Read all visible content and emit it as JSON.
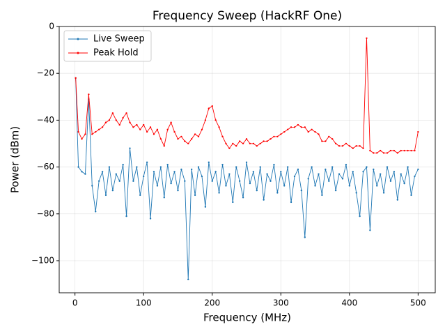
{
  "chart_data": {
    "type": "line",
    "title": "Frequency Sweep (HackRF One)",
    "x_label": "Frequency (MHz)",
    "y_label": "Power (dBm)",
    "x": [
      1,
      5,
      10,
      15,
      20,
      25,
      30,
      35,
      40,
      45,
      50,
      55,
      60,
      65,
      70,
      75,
      80,
      85,
      90,
      95,
      100,
      105,
      110,
      115,
      120,
      125,
      130,
      135,
      140,
      145,
      150,
      155,
      160,
      165,
      170,
      175,
      180,
      185,
      190,
      195,
      200,
      205,
      210,
      215,
      220,
      225,
      230,
      235,
      240,
      245,
      250,
      255,
      260,
      265,
      270,
      275,
      280,
      285,
      290,
      295,
      300,
      305,
      310,
      315,
      320,
      325,
      330,
      335,
      340,
      345,
      350,
      355,
      360,
      365,
      370,
      375,
      380,
      385,
      390,
      395,
      400,
      405,
      410,
      415,
      420,
      425,
      430,
      435,
      440,
      445,
      450,
      455,
      460,
      465,
      470,
      475,
      480,
      485,
      490,
      495,
      500
    ],
    "series": [
      {
        "name": "Live Sweep",
        "color": "#1f77b4",
        "values": [
          -22,
          -60,
          -62,
          -63,
          -31,
          -68,
          -79,
          -66,
          -62,
          -72,
          -60,
          -70,
          -63,
          -66,
          -59,
          -81,
          -52,
          -66,
          -60,
          -72,
          -64,
          -58,
          -82,
          -62,
          -68,
          -60,
          -73,
          -59,
          -67,
          -62,
          -70,
          -61,
          -66,
          -108,
          -61,
          -72,
          -60,
          -64,
          -77,
          -58,
          -66,
          -62,
          -71,
          -59,
          -68,
          -63,
          -75,
          -60,
          -66,
          -73,
          -58,
          -67,
          -62,
          -70,
          -60,
          -74,
          -63,
          -66,
          -59,
          -71,
          -62,
          -68,
          -60,
          -75,
          -64,
          -61,
          -70,
          -90,
          -65,
          -60,
          -68,
          -63,
          -72,
          -61,
          -66,
          -60,
          -70,
          -63,
          -65,
          -59,
          -68,
          -62,
          -71,
          -81,
          -62,
          -60,
          -87,
          -61,
          -68,
          -63,
          -71,
          -60,
          -66,
          -62,
          -74,
          -63,
          -67,
          -60,
          -72,
          -64,
          -61
        ]
      },
      {
        "name": "Peak Hold",
        "color": "#ff0000",
        "values": [
          -22,
          -45,
          -48,
          -46,
          -29,
          -46,
          -45,
          -44,
          -43,
          -41,
          -40,
          -37,
          -40,
          -42,
          -39,
          -37,
          -41,
          -43,
          -42,
          -44,
          -42,
          -45,
          -43,
          -46,
          -44,
          -48,
          -51,
          -44,
          -41,
          -45,
          -48,
          -47,
          -49,
          -50,
          -48,
          -46,
          -47,
          -44,
          -40,
          -35,
          -34,
          -40,
          -43,
          -47,
          -50,
          -52,
          -50,
          -51,
          -49,
          -50,
          -48,
          -50,
          -50,
          -51,
          -50,
          -49,
          -49,
          -48,
          -47,
          -47,
          -46,
          -45,
          -44,
          -43,
          -43,
          -42,
          -43,
          -43,
          -45,
          -44,
          -45,
          -46,
          -49,
          -49,
          -47,
          -48,
          -50,
          -51,
          -51,
          -50,
          -51,
          -52,
          -51,
          -51,
          -52,
          -5,
          -53,
          -54,
          -54,
          -53,
          -54,
          -54,
          -53,
          -53,
          -54,
          -53,
          -53,
          -53,
          -53,
          -53,
          -45
        ]
      }
    ],
    "xlim": [
      -23,
      525
    ],
    "ylim": [
      -113.7,
      0
    ],
    "xticks": [
      0,
      100,
      200,
      300,
      400,
      500
    ],
    "yticks": [
      {
        "value": -100,
        "label": "−100"
      },
      {
        "value": -80,
        "label": "−80"
      },
      {
        "value": -60,
        "label": "−60"
      },
      {
        "value": -40,
        "label": "−40"
      },
      {
        "value": -20,
        "label": "−20"
      },
      0
    ],
    "grid": true,
    "legend": "upper-left"
  }
}
